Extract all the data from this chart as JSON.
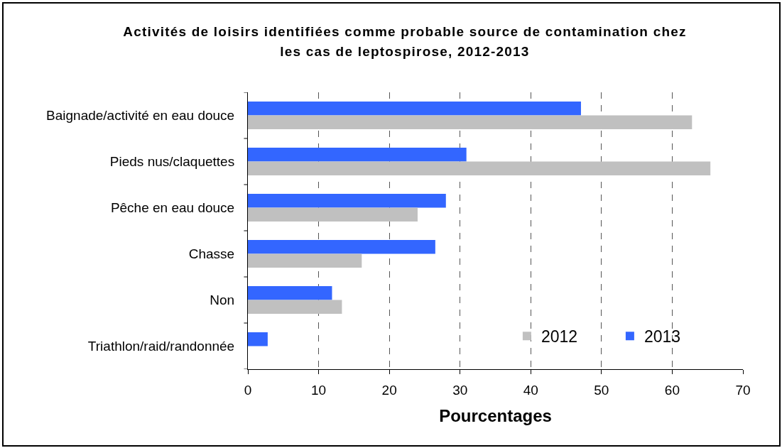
{
  "chart_data": {
    "type": "bar",
    "orientation": "horizontal",
    "title": "Activités de loisirs identifiées comme probable source de contamination chez\nles cas de leptospirose, 2012-2013",
    "xlabel": "Pourcentages",
    "categories": [
      "Baignade/activité en eau douce",
      "Pieds nus/claquettes",
      "Pêche en eau douce",
      "Chasse",
      "Non",
      "Triathlon/raid/randonnée"
    ],
    "series": [
      {
        "name": "2012",
        "color": "#c0c0c0",
        "values": [
          62.8,
          65.4,
          24.0,
          16.1,
          13.3,
          null
        ]
      },
      {
        "name": "2013",
        "color": "#3366ff",
        "values": [
          47.1,
          30.9,
          28.0,
          26.5,
          11.9,
          2.8
        ]
      }
    ],
    "xlim": [
      0,
      70
    ],
    "xticks": [
      0,
      10,
      20,
      30,
      40,
      50,
      60,
      70
    ],
    "grid": "x",
    "legend": "bottom right"
  }
}
